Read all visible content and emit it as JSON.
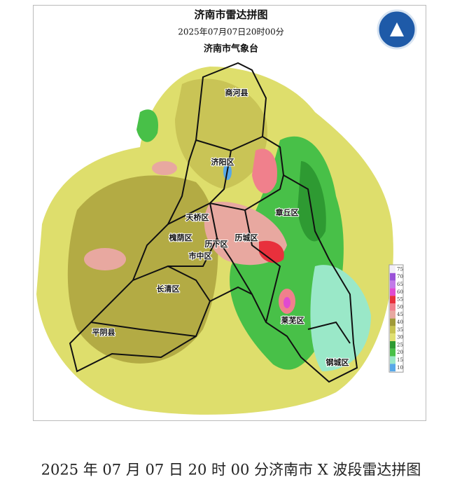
{
  "header": {
    "title": "济南市雷达拼图",
    "time": "2025年07月07日20时00分",
    "issuer": "济南市气象台"
  },
  "districts": [
    {
      "name": "商河县"
    },
    {
      "name": "济阳区"
    },
    {
      "name": "章丘区"
    },
    {
      "name": "天桥区"
    },
    {
      "name": "槐荫区"
    },
    {
      "name": "历下区"
    },
    {
      "name": "历城区"
    },
    {
      "name": "市中区"
    },
    {
      "name": "长清区"
    },
    {
      "name": "莱芜区"
    },
    {
      "name": "平阴县"
    },
    {
      "name": "钢城区"
    }
  ],
  "legend": [
    {
      "value": 75,
      "color": "#f2eef8"
    },
    {
      "value": 70,
      "color": "#9a52d8"
    },
    {
      "value": 65,
      "color": "#c27ae8"
    },
    {
      "value": 60,
      "color": "#e04ad0"
    },
    {
      "value": 55,
      "color": "#e8303c"
    },
    {
      "value": 50,
      "color": "#f0808c"
    },
    {
      "value": 45,
      "color": "#e8a8a0"
    },
    {
      "value": 40,
      "color": "#a09a38"
    },
    {
      "value": 35,
      "color": "#c8c450"
    },
    {
      "value": 30,
      "color": "#e0e070"
    },
    {
      "value": 25,
      "color": "#2e9a32"
    },
    {
      "value": 20,
      "color": "#48c048"
    },
    {
      "value": 15,
      "color": "#9ae8c8"
    },
    {
      "value": 10,
      "color": "#58a8e8"
    }
  ],
  "caption": "2025 年 07 月 07 日 20 时 00 分济南市 X 波段雷达拼图"
}
